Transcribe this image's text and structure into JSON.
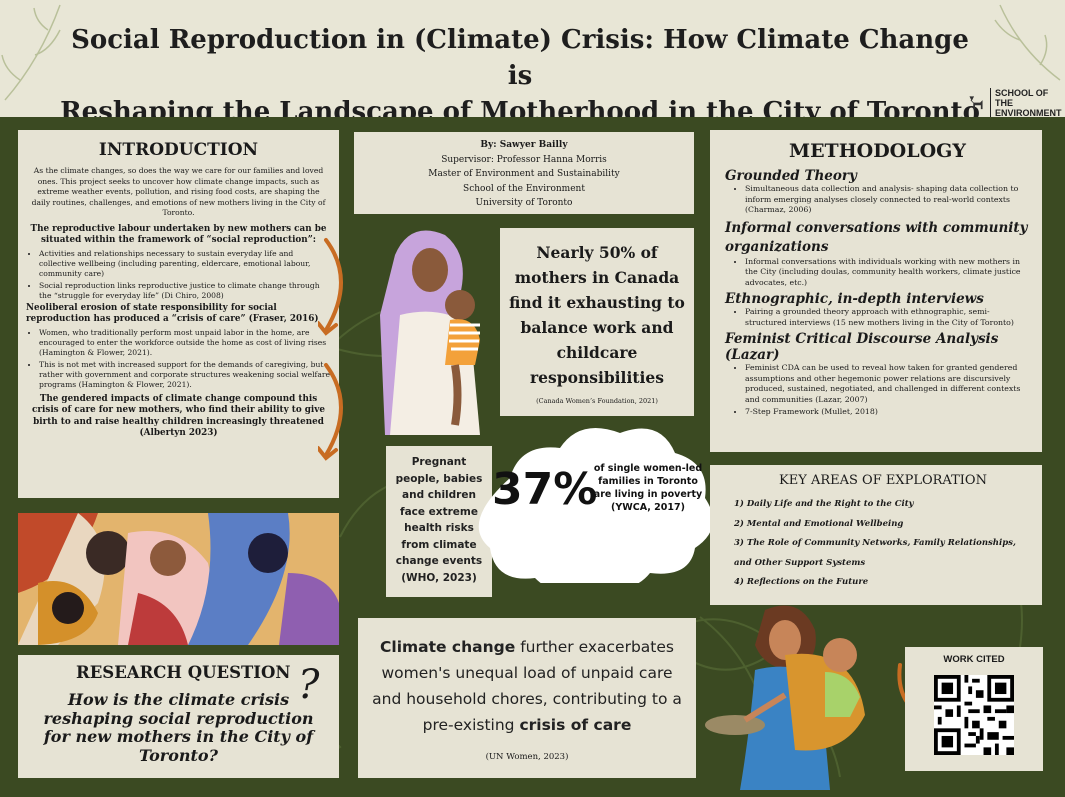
{
  "title": {
    "line1": "Social Reproduction in (Climate) Crisis: How Climate Change is",
    "line2": "Reshaping the Landscape of Motherhood in the City of Toronto"
  },
  "logo": {
    "line1": "SCHOOL OF THE",
    "line2": "ENVIRONMENT"
  },
  "intro": {
    "heading": "INTRODUCTION",
    "para": "As the climate changes, so does the way we care for our families and loved ones. This project seeks to uncover how climate change impacts, such as extreme weather events, pollution, and rising food costs, are shaping the daily routines, challenges, and emotions of new mothers living in the City of Toronto.",
    "sub1": "The reproductive labour undertaken by new mothers can be situated within the framework of “social reproduction”:",
    "b1": "Activities and relationships necessary to sustain everyday life and collective wellbeing (including parenting, eldercare, emotional labour, community care)",
    "b2": "Social reproduction links reproductive justice to climate change through the “struggle for everyday life” (Di Chiro, 2008)",
    "sub2": "Neoliberal erosion of state responsibility for social reproduction has produced a “crisis of care”  (Fraser, 2016)",
    "b3": "Women, who traditionally perform most unpaid labor in the home, are encouraged to enter the workforce outside the home as cost of living rises (Hamington & Flower, 2021).",
    "b4": "This is not met with increased support for the demands of caregiving, but rather with government and corporate structures weakening social welfare programs (Hamington & Flower, 2021).",
    "sub3": "The gendered impacts of climate change compound this crisis of care for new mothers, who find their ability to give birth to and raise healthy children increasingly threatened (Albertyn 2023)"
  },
  "research": {
    "heading": "RESEARCH QUESTION",
    "question": "How is the climate crisis reshaping social reproduction for new mothers in the City of Toronto?",
    "mark": "?"
  },
  "author": {
    "by": "By: Sawyer Bailly",
    "supervisor": "Supervisor: Professor Hanna Morris",
    "program": "Master of Environment and Sustainability",
    "school": "School of the Environment",
    "university": "University of Toronto"
  },
  "stat1": {
    "text": "Nearly 50% of mothers in Canada find it exhausting to balance work and childcare responsibilities",
    "source": "(Canada Women’s Foundation, 2021)"
  },
  "stat2": {
    "text": "Pregnant people, babies and children face extreme health risks from climate change events (WHO, 2023)"
  },
  "stat3": {
    "big": "37%",
    "text": "of single women-led families in Toronto are living in poverty (YWCA, 2017)"
  },
  "stat4": {
    "pre": "Climate change",
    "mid": " further exacerbates women's unequal load of unpaid care and household chores, contributing to a pre-existing ",
    "post": "crisis of care",
    "source": "(UN Women, 2023)"
  },
  "methodology": {
    "heading": "METHODOLOGY",
    "s1": "Grounded Theory",
    "s1b": "Simultaneous data collection and analysis- shaping data collection to inform emerging analyses closely connected to real-world contexts (Charmaz, 2006)",
    "s2": "Informal conversations with community organizations",
    "s2b": "Informal conversations with individuals working with new mothers in the City (including doulas, community health workers, climate justice advocates, etc.)",
    "s3": "Ethnographic, in-depth interviews",
    "s3b": "Pairing a grounded theory approach with ethnographic, semi-structured interviews (15 new mothers living in the City of Toronto)",
    "s4": "Feminist Critical Discourse Analysis (Lazar)",
    "s4b1": "Feminist CDA can be used to reveal how taken for granted gendered assumptions and other hegemonic power relations are discursively produced, sustained, negotiated, and challenged in different contexts and communities (Lazar, 2007)",
    "s4b2": "7-Step Framework (Mullet, 2018)"
  },
  "key": {
    "heading": "KEY AREAS OF EXPLORATION",
    "i1": "1) Daily Life and the Right to the City",
    "i2": "2) Mental  and Emotional Wellbeing",
    "i3": "3) The Role of Community Networks, Family Relationships, and Other Support Systems",
    "i4": "4) Reflections on the Future"
  },
  "work": {
    "heading": "WORK CITED"
  }
}
